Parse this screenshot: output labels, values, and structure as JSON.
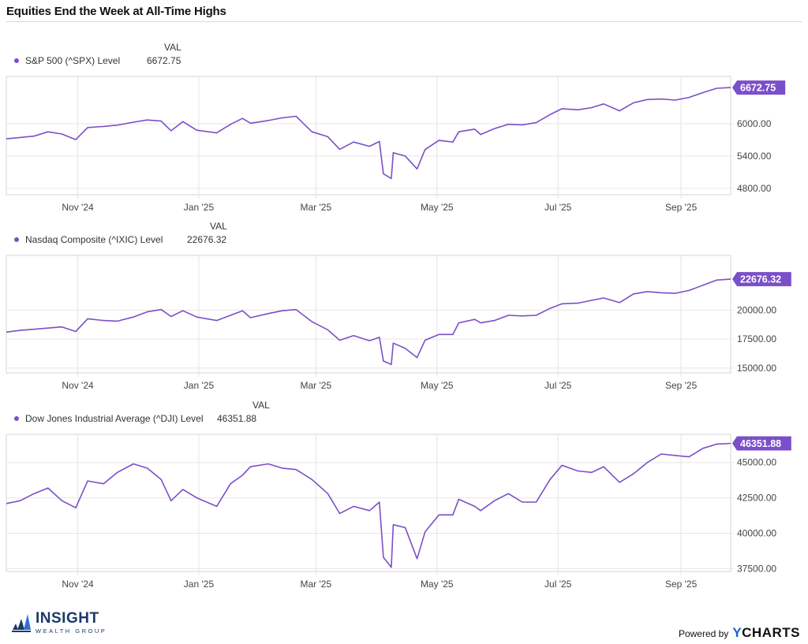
{
  "title": "Equities End the Week at All-Time Highs",
  "val_header": "VAL",
  "accent_color": "#7b4fc9",
  "footer": {
    "logo_main": "INSIGHT",
    "logo_sub": "WEALTH GROUP",
    "powered_label": "Powered by",
    "powered_brand_y": "Y",
    "powered_brand_rest": "CHARTS"
  },
  "chart_data": [
    {
      "type": "line",
      "title": "",
      "legend": "S&P 500 (^SPX) Level",
      "latest_value_label": "6672.75",
      "xlabel": "",
      "ylabel": "",
      "x_ticks": [
        "Nov '24",
        "Jan '25",
        "Mar '25",
        "May '25",
        "Jul '25",
        "Sep '25"
      ],
      "y_ticks": [
        "6000.00",
        "5400.00",
        "4800.00"
      ],
      "ylim": [
        4680,
        6880
      ],
      "x": [
        "2024-09-26",
        "2024-10-03",
        "2024-10-10",
        "2024-10-17",
        "2024-10-24",
        "2024-10-31",
        "2024-11-06",
        "2024-11-14",
        "2024-11-21",
        "2024-11-29",
        "2024-12-06",
        "2024-12-13",
        "2024-12-18",
        "2024-12-24",
        "2024-12-31",
        "2025-01-10",
        "2025-01-17",
        "2025-01-23",
        "2025-01-27",
        "2025-02-05",
        "2025-02-12",
        "2025-02-19",
        "2025-02-27",
        "2025-03-07",
        "2025-03-13",
        "2025-03-20",
        "2025-03-28",
        "2025-04-02",
        "2025-04-04",
        "2025-04-08",
        "2025-04-09",
        "2025-04-15",
        "2025-04-21",
        "2025-04-25",
        "2025-05-02",
        "2025-05-09",
        "2025-05-12",
        "2025-05-20",
        "2025-05-23",
        "2025-05-30",
        "2025-06-06",
        "2025-06-13",
        "2025-06-20",
        "2025-06-27",
        "2025-07-03",
        "2025-07-11",
        "2025-07-18",
        "2025-07-24",
        "2025-08-01",
        "2025-08-08",
        "2025-08-15",
        "2025-08-22",
        "2025-08-29",
        "2025-09-05",
        "2025-09-12",
        "2025-09-19",
        "2025-09-26"
      ],
      "values": [
        5720,
        5745,
        5770,
        5850,
        5810,
        5705,
        5930,
        5950,
        5975,
        6030,
        6070,
        6050,
        5870,
        6040,
        5880,
        5830,
        5990,
        6100,
        6010,
        6060,
        6110,
        6140,
        5850,
        5760,
        5525,
        5660,
        5580,
        5670,
        5070,
        4980,
        5460,
        5400,
        5160,
        5520,
        5690,
        5660,
        5850,
        5900,
        5800,
        5910,
        5990,
        5980,
        6020,
        6170,
        6280,
        6260,
        6300,
        6370,
        6240,
        6390,
        6450,
        6460,
        6440,
        6490,
        6580,
        6660,
        6672.75
      ]
    },
    {
      "type": "line",
      "title": "",
      "legend": "Nasdaq Composite (^IXIC) Level",
      "latest_value_label": "22676.32",
      "xlabel": "",
      "ylabel": "",
      "x_ticks": [
        "Nov '24",
        "Jan '25",
        "Mar '25",
        "May '25",
        "Jul '25",
        "Sep '25"
      ],
      "y_ticks": [
        "20000.00",
        "17500.00",
        "15000.00"
      ],
      "ylim": [
        14580,
        24730
      ],
      "x": [
        "2024-09-26",
        "2024-10-03",
        "2024-10-10",
        "2024-10-17",
        "2024-10-24",
        "2024-10-31",
        "2024-11-06",
        "2024-11-14",
        "2024-11-21",
        "2024-11-29",
        "2024-12-06",
        "2024-12-13",
        "2024-12-18",
        "2024-12-24",
        "2024-12-31",
        "2025-01-10",
        "2025-01-17",
        "2025-01-23",
        "2025-01-27",
        "2025-02-05",
        "2025-02-12",
        "2025-02-19",
        "2025-02-27",
        "2025-03-07",
        "2025-03-13",
        "2025-03-20",
        "2025-03-28",
        "2025-04-02",
        "2025-04-04",
        "2025-04-08",
        "2025-04-09",
        "2025-04-15",
        "2025-04-21",
        "2025-04-25",
        "2025-05-02",
        "2025-05-09",
        "2025-05-12",
        "2025-05-20",
        "2025-05-23",
        "2025-05-30",
        "2025-06-06",
        "2025-06-13",
        "2025-06-20",
        "2025-06-27",
        "2025-07-03",
        "2025-07-11",
        "2025-07-18",
        "2025-07-24",
        "2025-08-01",
        "2025-08-08",
        "2025-08-15",
        "2025-08-22",
        "2025-08-29",
        "2025-09-05",
        "2025-09-12",
        "2025-09-19",
        "2025-09-26"
      ],
      "values": [
        18100,
        18250,
        18350,
        18450,
        18550,
        18150,
        19250,
        19100,
        19050,
        19400,
        19850,
        20050,
        19450,
        19950,
        19400,
        19100,
        19550,
        19950,
        19350,
        19700,
        19950,
        20050,
        19000,
        18300,
        17400,
        17800,
        17350,
        17650,
        15600,
        15300,
        17150,
        16700,
        15900,
        17400,
        17900,
        17900,
        18900,
        19200,
        18900,
        19100,
        19550,
        19500,
        19550,
        20150,
        20550,
        20600,
        20850,
        21050,
        20650,
        21400,
        21600,
        21500,
        21450,
        21700,
        22150,
        22600,
        22676.32
      ]
    },
    {
      "type": "line",
      "title": "",
      "legend": "Dow Jones Industrial Average (^DJI) Level",
      "latest_value_label": "46351.88",
      "xlabel": "",
      "ylabel": "",
      "x_ticks": [
        "Nov '24",
        "Jan '25",
        "Mar '25",
        "May '25",
        "Jul '25",
        "Sep '25"
      ],
      "y_ticks": [
        "45000.00",
        "42500.00",
        "40000.00",
        "37500.00"
      ],
      "ylim": [
        37300,
        46990
      ],
      "x": [
        "2024-09-26",
        "2024-10-03",
        "2024-10-10",
        "2024-10-17",
        "2024-10-24",
        "2024-10-31",
        "2024-11-06",
        "2024-11-14",
        "2024-11-21",
        "2024-11-29",
        "2024-12-06",
        "2024-12-13",
        "2024-12-18",
        "2024-12-24",
        "2024-12-31",
        "2025-01-10",
        "2025-01-17",
        "2025-01-23",
        "2025-01-27",
        "2025-02-05",
        "2025-02-12",
        "2025-02-19",
        "2025-02-27",
        "2025-03-07",
        "2025-03-13",
        "2025-03-20",
        "2025-03-28",
        "2025-04-02",
        "2025-04-04",
        "2025-04-08",
        "2025-04-09",
        "2025-04-15",
        "2025-04-21",
        "2025-04-25",
        "2025-05-02",
        "2025-05-09",
        "2025-05-12",
        "2025-05-20",
        "2025-05-23",
        "2025-05-30",
        "2025-06-06",
        "2025-06-13",
        "2025-06-20",
        "2025-06-27",
        "2025-07-03",
        "2025-07-11",
        "2025-07-18",
        "2025-07-24",
        "2025-08-01",
        "2025-08-08",
        "2025-08-15",
        "2025-08-22",
        "2025-08-29",
        "2025-09-05",
        "2025-09-12",
        "2025-09-19",
        "2025-09-26"
      ],
      "values": [
        42100,
        42300,
        42800,
        43200,
        42300,
        41800,
        43700,
        43500,
        44300,
        44900,
        44600,
        43800,
        42300,
        43100,
        42500,
        41900,
        43500,
        44100,
        44700,
        44900,
        44600,
        44500,
        43800,
        42800,
        41400,
        41900,
        41600,
        42200,
        38300,
        37600,
        40600,
        40400,
        38200,
        40100,
        41300,
        41300,
        42400,
        41900,
        41600,
        42300,
        42800,
        42200,
        42200,
        43800,
        44800,
        44400,
        44300,
        44700,
        43600,
        44200,
        45000,
        45600,
        45500,
        45400,
        46000,
        46300,
        46351.88
      ]
    }
  ]
}
